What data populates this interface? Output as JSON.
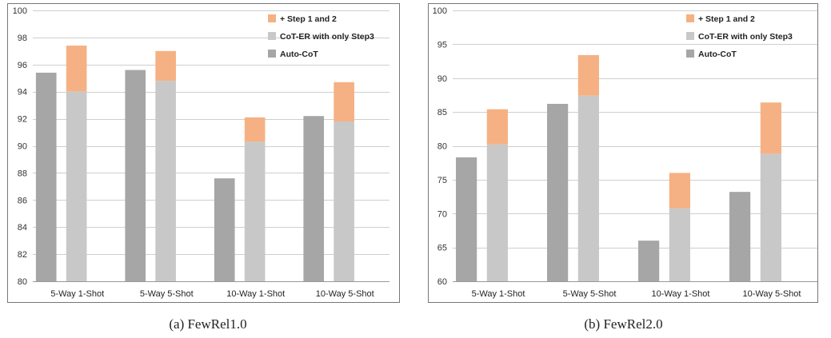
{
  "colors": {
    "auto_cot": "#a6a6a6",
    "cot_er": "#c8c8c8",
    "step12": "#f5b183",
    "grid": "#cfcfcf",
    "frame": "#777777"
  },
  "chart_data": [
    {
      "type": "bar",
      "caption": "(a)  FewRel1.0",
      "categories": [
        "5-Way 1-Shot",
        "5-Way 5-Shot",
        "10-Way 1-Shot",
        "10-Way 5-Shot"
      ],
      "series": [
        {
          "name": "Auto-CoT",
          "values": [
            95.4,
            95.6,
            87.6,
            92.2
          ]
        },
        {
          "name": "CoT-ER with only Step3",
          "values": [
            94.0,
            94.8,
            90.3,
            91.8
          ]
        },
        {
          "name": "+ Step 1 and 2",
          "values": [
            97.4,
            97.0,
            92.1,
            94.7
          ]
        }
      ],
      "legend": [
        "+ Step 1 and 2",
        "CoT-ER with only Step3",
        "Auto-CoT"
      ],
      "legend_position": "top-right",
      "ylim": [
        80,
        100
      ],
      "yticks": [
        80,
        82,
        84,
        86,
        88,
        90,
        92,
        94,
        96,
        98,
        100
      ],
      "grid": true
    },
    {
      "type": "bar",
      "caption": "(b)  FewRel2.0",
      "categories": [
        "5-Way 1-Shot",
        "5-Way 5-Shot",
        "10-Way 1-Shot",
        "10-Way 5-Shot"
      ],
      "series": [
        {
          "name": "Auto-CoT",
          "values": [
            78.3,
            86.2,
            66.0,
            73.2
          ]
        },
        {
          "name": "CoT-ER with only Step3",
          "values": [
            80.2,
            87.4,
            70.8,
            78.8
          ]
        },
        {
          "name": "+ Step 1 and 2",
          "values": [
            85.4,
            93.4,
            76.0,
            86.4
          ]
        }
      ],
      "legend": [
        "+ Step 1 and 2",
        "CoT-ER with only Step3",
        "Auto-CoT"
      ],
      "legend_position": "top-right",
      "ylim": [
        60,
        100
      ],
      "yticks": [
        60,
        65,
        70,
        75,
        80,
        85,
        90,
        95,
        100
      ],
      "grid": true
    }
  ]
}
